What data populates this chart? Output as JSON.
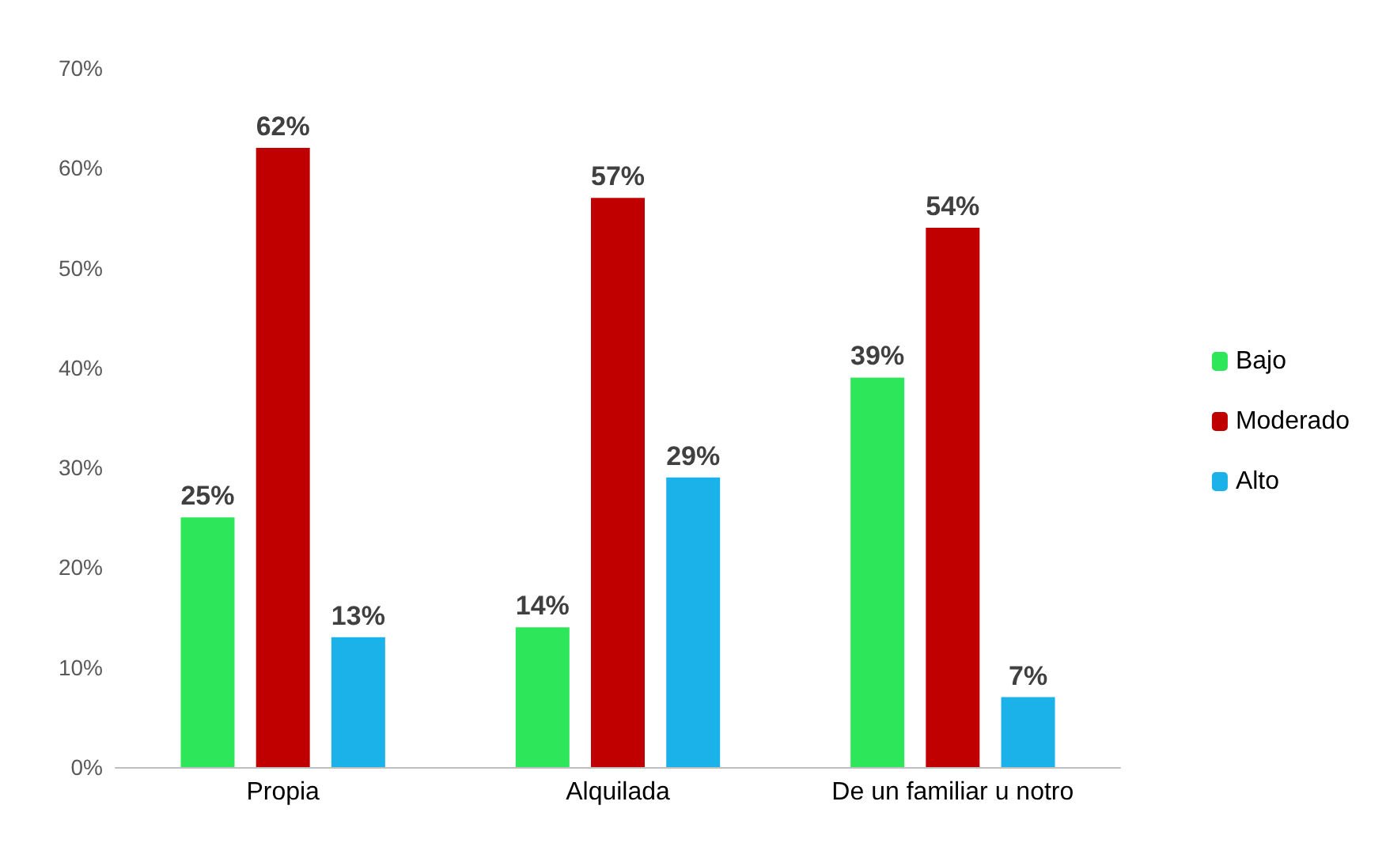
{
  "chart_data": {
    "type": "bar",
    "categories": [
      "Propia",
      "Alquilada",
      "De un familiar u notro"
    ],
    "series": [
      {
        "name": "Bajo",
        "color": "#2ee65a",
        "values": [
          25,
          14,
          39
        ],
        "value_labels": [
          "25%",
          "14%",
          "39%"
        ]
      },
      {
        "name": "Moderado",
        "color": "#c00000",
        "values": [
          62,
          57,
          54
        ],
        "value_labels": [
          "62%",
          "57%",
          "54%"
        ]
      },
      {
        "name": "Alto",
        "color": "#1ab2e8",
        "values": [
          13,
          29,
          7
        ],
        "value_labels": [
          "13%",
          "29%",
          "7%"
        ]
      }
    ],
    "ylim": [
      0,
      70
    ],
    "yticks": [
      {
        "value": 0,
        "label": "0%"
      },
      {
        "value": 10,
        "label": "10%"
      },
      {
        "value": 20,
        "label": "20%"
      },
      {
        "value": 30,
        "label": "30%"
      },
      {
        "value": 40,
        "label": "40%"
      },
      {
        "value": 50,
        "label": "50%"
      },
      {
        "value": 60,
        "label": "60%"
      },
      {
        "value": 70,
        "label": "70%"
      }
    ],
    "grid": false,
    "legend": "right"
  }
}
